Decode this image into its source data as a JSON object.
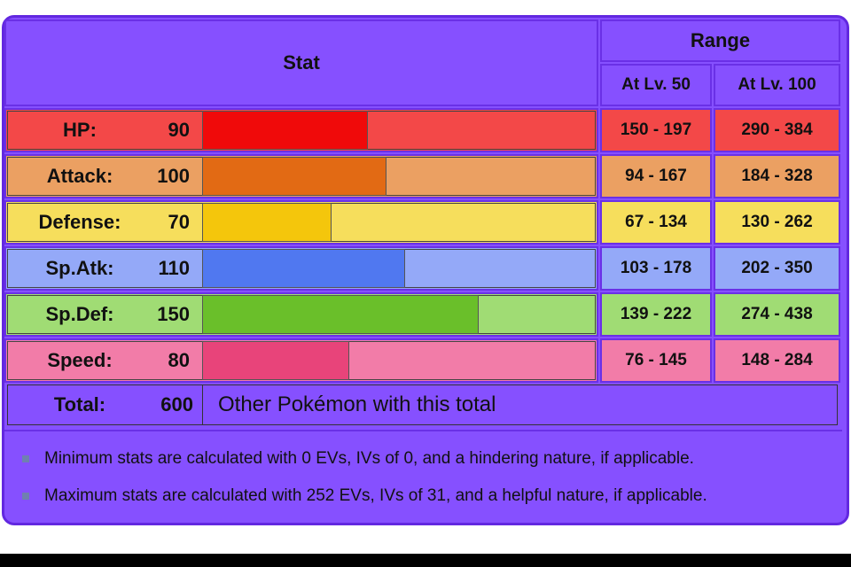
{
  "header": {
    "stat": "Stat",
    "range": "Range",
    "lv50": "At Lv. 50",
    "lv100": "At Lv. 100"
  },
  "stats": [
    {
      "name": "HP:",
      "value": 90,
      "lv50": "150 - 197",
      "lv100": "290 - 384",
      "color": "#f34848",
      "bar_color": "#f00a0a"
    },
    {
      "name": "Attack:",
      "value": 100,
      "lv50": "94 - 167",
      "lv100": "184 - 328",
      "color": "#eba062",
      "bar_color": "#e26a14"
    },
    {
      "name": "Defense:",
      "value": 70,
      "lv50": "67 - 134",
      "lv100": "130 - 262",
      "color": "#f6de5c",
      "bar_color": "#f4c60c"
    },
    {
      "name": "Sp.Atk:",
      "value": 110,
      "lv50": "103 - 178",
      "lv100": "202 - 350",
      "color": "#94a9f8",
      "bar_color": "#5078f0"
    },
    {
      "name": "Sp.Def:",
      "value": 150,
      "lv50": "139 - 222",
      "lv100": "274 - 438",
      "color": "#a0dc74",
      "bar_color": "#6abf2a"
    },
    {
      "name": "Speed:",
      "value": 80,
      "lv50": "76 - 145",
      "lv100": "148 - 284",
      "color": "#f27ca8",
      "bar_color": "#e8447a"
    }
  ],
  "total": {
    "label": "Total:",
    "value": 600,
    "link": "Other Pokémon with this total"
  },
  "notes": [
    "Minimum stats are calculated with 0 EVs, IVs of 0, and a hindering nature, if applicable.",
    "Maximum stats are calculated with 252 EVs, IVs of 31, and a helpful nature, if applicable."
  ]
}
